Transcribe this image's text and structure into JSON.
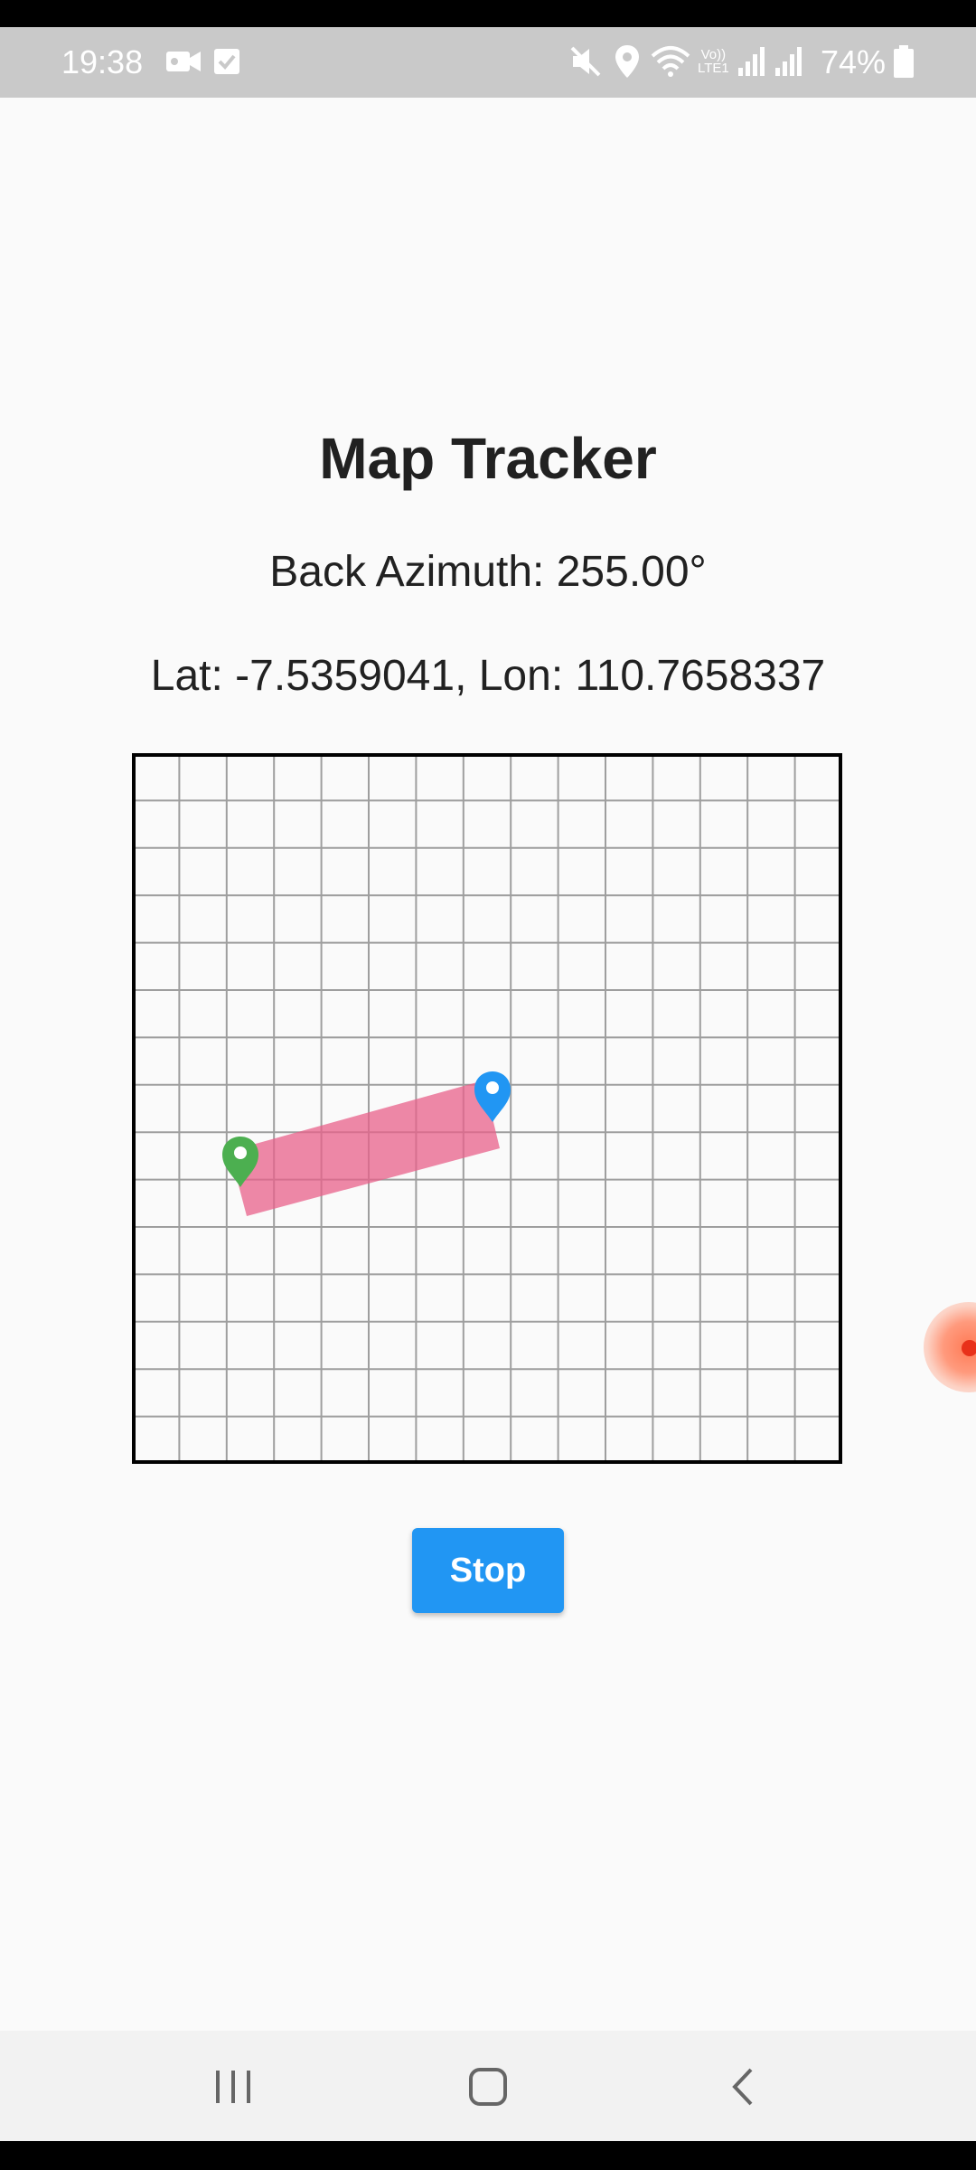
{
  "status_bar": {
    "time": "19:38",
    "battery_percent": "74%",
    "icons": [
      "video-camera-icon",
      "checkbox-icon",
      "mute-icon",
      "location-icon",
      "wifi-icon",
      "volte-icon",
      "signal-icon",
      "signal-icon",
      "battery-icon"
    ],
    "volte_label": "Vo))\nLTE1"
  },
  "app": {
    "title": "Map Tracker",
    "back_azimuth": "Back Azimuth: 255.00°",
    "coordinates": "Lat: -7.5359041, Lon: 110.7658337",
    "stop_label": "Stop"
  },
  "map": {
    "grid_columns": 15,
    "grid_rows": 15,
    "colors": {
      "grid": "#9e9e9e",
      "border": "#000000",
      "track": "#e8608a",
      "start_marker": "#4caf50",
      "current_marker": "#2196f3"
    }
  },
  "navigation_bar": {
    "icons": [
      "recent-apps-icon",
      "home-icon",
      "back-icon"
    ]
  },
  "colors": {
    "accent": "#2196f3",
    "status_bar_bg": "#c9c9c9",
    "page_bg": "#fafafa"
  }
}
